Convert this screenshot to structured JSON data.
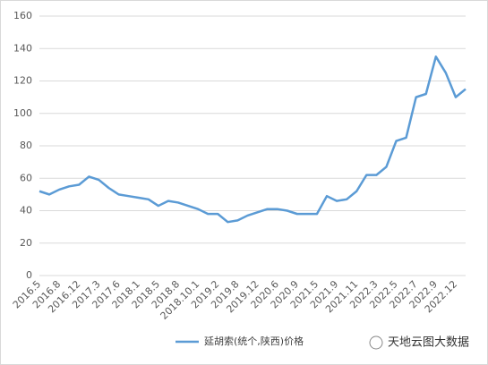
{
  "chart_data": {
    "type": "line",
    "categories": [
      "2016.5",
      null,
      "2016.8",
      null,
      "2016.12",
      null,
      "2017.3",
      null,
      "2017.6",
      null,
      "2018.1",
      null,
      "2018.5",
      null,
      "2018.8",
      null,
      "2018.10.1",
      null,
      "2019.2",
      null,
      "2019.8",
      null,
      "2019.12",
      null,
      "2020.6",
      null,
      "2020.9",
      null,
      "2021.5",
      null,
      "2021.9",
      null,
      "2021.11",
      null,
      "2022.3",
      null,
      "2022.5",
      null,
      "2022.7",
      null,
      "2022.9",
      null,
      "2022.12",
      null
    ],
    "series": [
      {
        "name": "延胡索(统个,陕西)价格",
        "color": "#5b9bd5",
        "values": [
          52,
          50,
          53,
          55,
          56,
          61,
          59,
          54,
          50,
          49,
          48,
          47,
          43,
          46,
          45,
          43,
          41,
          38,
          38,
          33,
          34,
          37,
          39,
          41,
          41,
          40,
          38,
          38,
          38,
          49,
          46,
          47,
          52,
          62,
          62,
          67,
          83,
          85,
          110,
          112,
          135,
          125,
          110,
          115
        ]
      }
    ],
    "ylim": [
      0,
      160
    ],
    "yticks": [
      0,
      20,
      40,
      60,
      80,
      100,
      120,
      140,
      160
    ],
    "grid": true,
    "watermark": "天地云图大数据"
  }
}
